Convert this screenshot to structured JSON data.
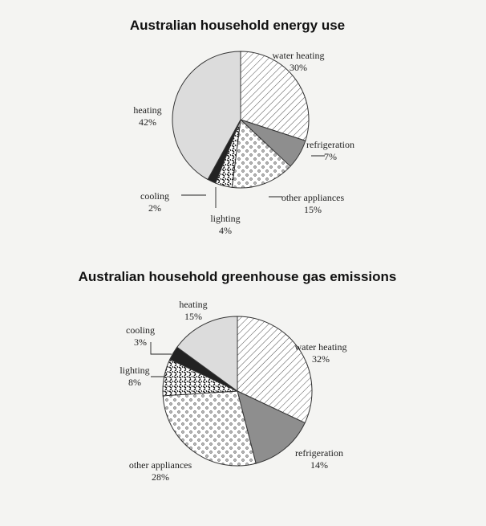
{
  "chart_data": [
    {
      "type": "pie",
      "title": "Australian household energy use",
      "slices": [
        {
          "name": "water heating",
          "value": 30,
          "value_label": "30%",
          "pattern": "hatch"
        },
        {
          "name": "refrigeration",
          "value": 7,
          "value_label": "7%",
          "pattern": "dark"
        },
        {
          "name": "other appliances",
          "value": 15,
          "value_label": "15%",
          "pattern": "dots"
        },
        {
          "name": "lighting",
          "value": 4,
          "value_label": "4%",
          "pattern": "dashes"
        },
        {
          "name": "cooling",
          "value": 2,
          "value_label": "2%",
          "pattern": "black"
        },
        {
          "name": "heating",
          "value": 42,
          "value_label": "42%",
          "pattern": "light"
        }
      ]
    },
    {
      "type": "pie",
      "title": "Australian household greenhouse gas emissions",
      "slices": [
        {
          "name": "water heating",
          "value": 32,
          "value_label": "32%",
          "pattern": "hatch"
        },
        {
          "name": "refrigeration",
          "value": 14,
          "value_label": "14%",
          "pattern": "dark"
        },
        {
          "name": "other appliances",
          "value": 28,
          "value_label": "28%",
          "pattern": "dots"
        },
        {
          "name": "lighting",
          "value": 8,
          "value_label": "8%",
          "pattern": "dashes"
        },
        {
          "name": "cooling",
          "value": 3,
          "value_label": "3%",
          "pattern": "black"
        },
        {
          "name": "heating",
          "value": 15,
          "value_label": "15%",
          "pattern": "light"
        }
      ]
    }
  ],
  "colors": {
    "light": "#dcdcdc",
    "dark": "#8e8e8e",
    "black": "#222222",
    "outline": "#333333"
  }
}
